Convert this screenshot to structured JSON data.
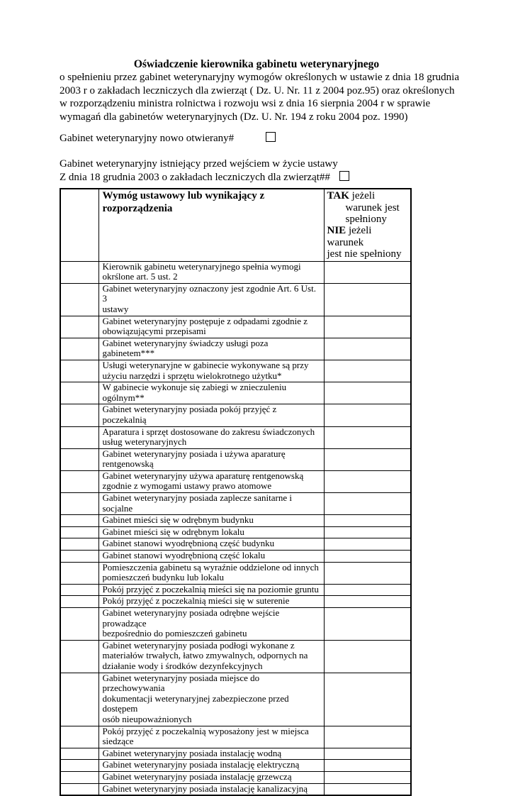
{
  "doc": {
    "title": "Oświadczenie kierownika gabinetu weterynaryjnego",
    "intro": "o spełnieniu przez gabinet weterynaryjny wymogów określonych w ustawie z dnia 18 grudnia\n2003 r o zakładach leczniczych dla zwierząt  ( Dz. U. Nr. 11 z 2004 poz.95) oraz określonych\nw rozporządzeniu ministra rolnictwa i rozwoju wsi z dnia 16 sierpnia 2004 r w sprawie\nwymagań dla gabinetów weterynaryjnych (Dz. U. Nr. 194 z roku 2004 poz. 1990)",
    "new_office": {
      "label": "Gabinet weterynaryjny nowo otwierany#",
      "checked": false
    },
    "existing_office": {
      "line1": "Gabinet weterynaryjny istniejący przed wejściem w życie ustawy",
      "line2": "Z dnia 18 grudnia 2003 o zakładach leczniczych dla zwierząt##",
      "checked": false
    },
    "table": {
      "header": {
        "requirement": "Wymóg ustawowy lub wynikający z\nrozporządzenia",
        "answer": {
          "tak": "TAK",
          "tak_rest": " jeżeli",
          "line2": "warunek jest",
          "line3": "spełniony",
          "nie": "NIE",
          "nie_rest": " jeżeli warunek",
          "line5": "jest nie spełniony"
        }
      },
      "rows": [
        {
          "requirement": "Kierownik gabinetu weterynaryjnego spełnia wymogi\nokrślone art. 5 ust. 2",
          "answer": ""
        },
        {
          "requirement": "Gabinet weterynaryjny oznaczony jest zgodnie Art. 6 Ust. 3\nustawy",
          "answer": ""
        },
        {
          "requirement": "Gabinet weterynaryjny postępuje z odpadami zgodnie z\nobowiązującymi przepisami",
          "answer": ""
        },
        {
          "requirement": "Gabinet weterynaryjny świadczy usługi poza gabinetem***",
          "answer": ""
        },
        {
          "requirement": "Usługi weterynaryjne w gabinecie wykonywane są  przy\nużyciu narzędzi i sprzętu wielokrotnego użytku*",
          "answer": ""
        },
        {
          "requirement": "W gabinecie wykonuje się zabiegi w znieczuleniu ogólnym**",
          "answer": ""
        },
        {
          "requirement": "Gabinet weterynaryjny posiada pokój przyjęć z poczekalnią",
          "answer": ""
        },
        {
          "requirement": "Aparatura i sprzęt dostosowane do zakresu świadczonych\nusług weterynaryjnych",
          "answer": ""
        },
        {
          "requirement": "Gabinet weterynaryjny posiada i używa aparaturę\nrentgenowską",
          "answer": ""
        },
        {
          "requirement": "Gabinet weterynaryjny używa aparaturę rentgenowską\nzgodnie z wymogami ustawy prawo atomowe",
          "answer": ""
        },
        {
          "requirement": "Gabinet weterynaryjny posiada  zaplecze sanitarne i socjalne",
          "answer": ""
        },
        {
          "requirement": "Gabinet mieści się w odrębnym budynku",
          "answer": ""
        },
        {
          "requirement": "Gabinet mieści się w odrębnym lokalu",
          "answer": ""
        },
        {
          "requirement": "Gabinet stanowi wyodrębnioną część budynku",
          "answer": ""
        },
        {
          "requirement": "Gabinet stanowi wyodrębnioną część lokalu",
          "answer": ""
        },
        {
          "requirement": "Pomieszczenia gabinetu są wyraźnie oddzielone od innych\npomieszczeń budynku lub lokalu",
          "answer": ""
        },
        {
          "requirement": "Pokój przyjęć z poczekalnią mieści się na poziomie gruntu",
          "answer": ""
        },
        {
          "requirement": "Pokój przyjęć z poczekalnią mieści się w suterenie",
          "answer": ""
        },
        {
          "requirement": "Gabinet weterynaryjny posiada odrębne wejście prowadzące\nbezpośrednio do pomieszczeń gabinetu",
          "answer": ""
        },
        {
          "requirement": "Gabinet weterynaryjny posiada podłogi wykonane z\nmateriałów trwałych, łatwo zmywalnych, odpornych na\ndziałanie wody i środków dezynfekcyjnych",
          "answer": ""
        },
        {
          "requirement": "Gabinet weterynaryjny posiada miejsce do przechowywania\ndokumentacji weterynaryjnej zabezpieczone przed dostępem\nosób nieupoważnionych",
          "answer": ""
        },
        {
          "requirement": "Pokój przyjęć z poczekalnią wyposażony jest w miejsca\nsiedzące",
          "answer": ""
        },
        {
          "requirement": "Gabinet weterynaryjny posiada instalację wodną",
          "answer": ""
        },
        {
          "requirement": "Gabinet weterynaryjny posiada instalację elektryczną",
          "answer": ""
        },
        {
          "requirement": "Gabinet weterynaryjny posiada instalację grzewczą",
          "answer": ""
        },
        {
          "requirement": "Gabinet weterynaryjny posiada instalację kanalizacyjną",
          "answer": ""
        }
      ]
    }
  }
}
